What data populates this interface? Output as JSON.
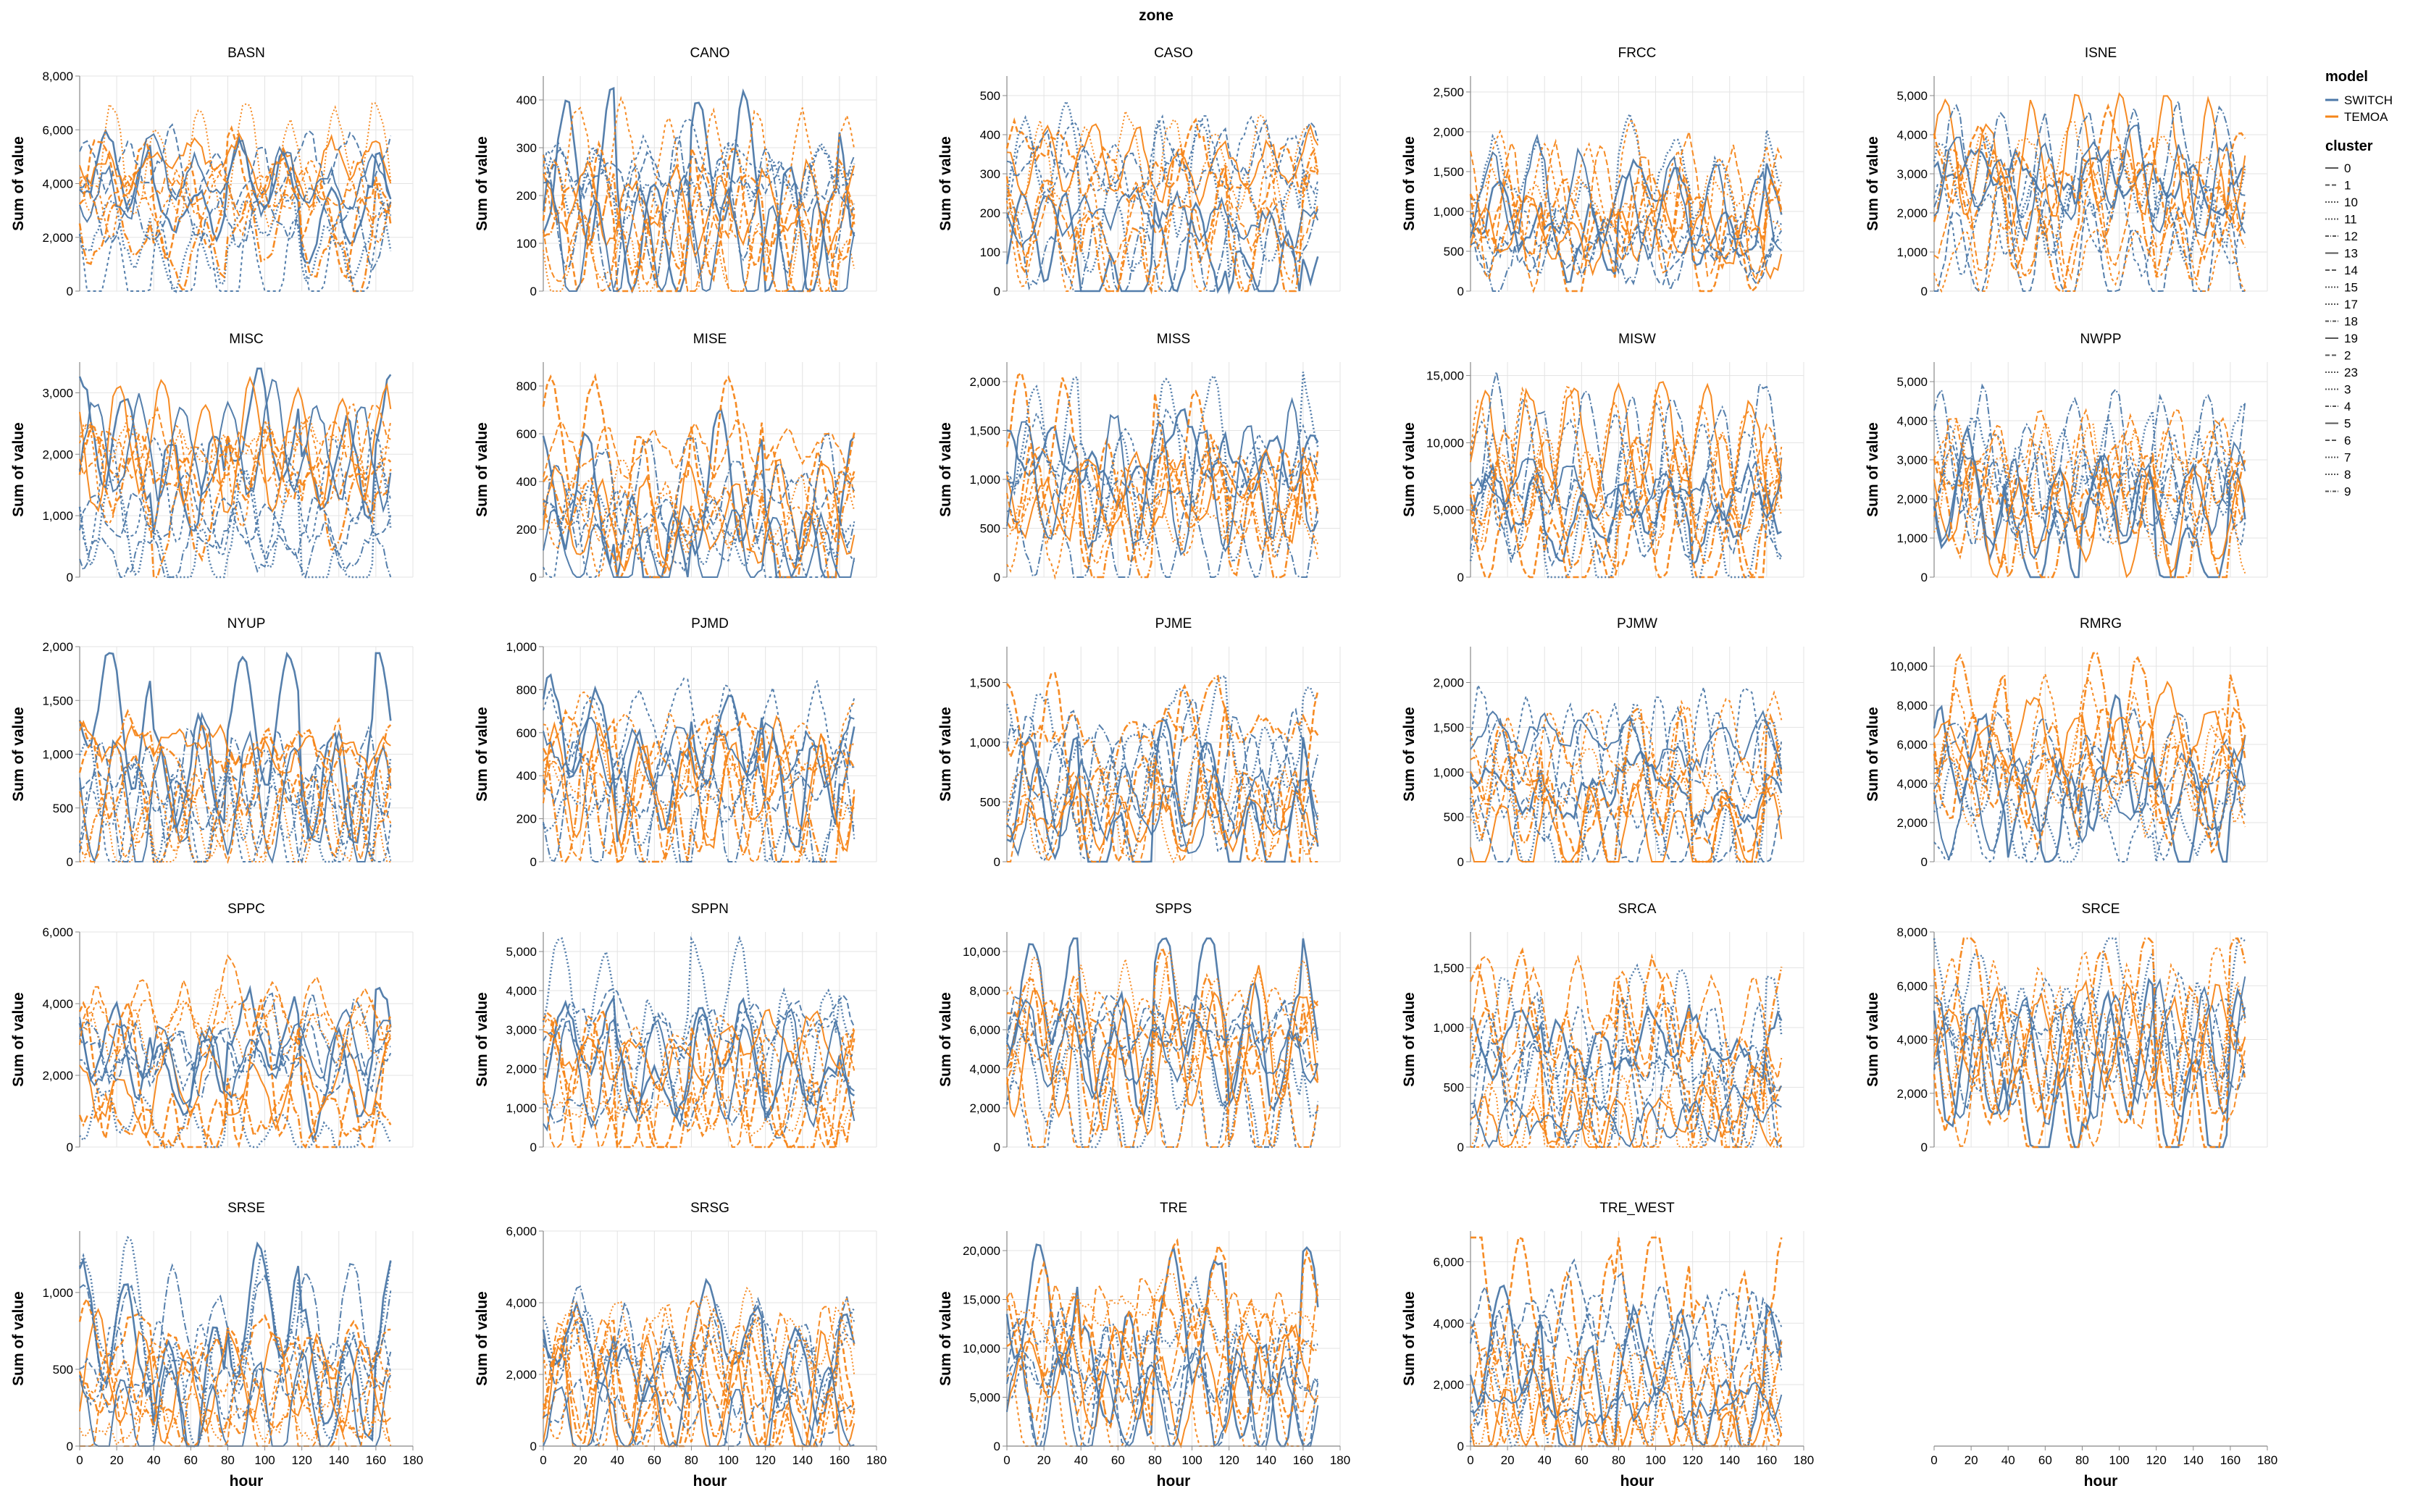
{
  "chart_data": {
    "type": "line",
    "column_header": "zone",
    "xlabel": "hour",
    "ylabel": "Sum of value",
    "x_ticks": [
      0,
      20,
      40,
      60,
      80,
      100,
      120,
      140,
      160,
      180
    ],
    "xlim": [
      0,
      180
    ],
    "grid": true,
    "legend_position": "right",
    "color_legend": {
      "title": "model",
      "entries": [
        {
          "label": "SWITCH",
          "color": "#4c78a8"
        },
        {
          "label": "TEMOA",
          "color": "#f58518"
        }
      ]
    },
    "dash_legend": {
      "title": "cluster",
      "entries": [
        "0",
        "1",
        "10",
        "11",
        "12",
        "13",
        "14",
        "15",
        "17",
        "18",
        "19",
        "2",
        "23",
        "3",
        "4",
        "5",
        "6",
        "7",
        "8",
        "9"
      ]
    },
    "facets": [
      {
        "zone": "BASN",
        "ylim": [
          0,
          8000
        ],
        "y_ticks": [
          "0",
          "2,000",
          "4,000",
          "6,000",
          "8,000"
        ]
      },
      {
        "zone": "CANO",
        "ylim": [
          0,
          450
        ],
        "y_ticks": [
          "0",
          "100",
          "200",
          "300",
          "400"
        ]
      },
      {
        "zone": "CASO",
        "ylim": [
          0,
          550
        ],
        "y_ticks": [
          "0",
          "100",
          "200",
          "300",
          "400",
          "500"
        ]
      },
      {
        "zone": "FRCC",
        "ylim": [
          0,
          2700
        ],
        "y_ticks": [
          "0",
          "500",
          "1,000",
          "1,500",
          "2,000",
          "2,500"
        ]
      },
      {
        "zone": "ISNE",
        "ylim": [
          0,
          5500
        ],
        "y_ticks": [
          "0",
          "1,000",
          "2,000",
          "3,000",
          "4,000",
          "5,000"
        ]
      },
      {
        "zone": "MISC",
        "ylim": [
          0,
          3500
        ],
        "y_ticks": [
          "0",
          "1,000",
          "2,000",
          "3,000"
        ]
      },
      {
        "zone": "MISE",
        "ylim": [
          0,
          900
        ],
        "y_ticks": [
          "0",
          "200",
          "400",
          "600",
          "800"
        ]
      },
      {
        "zone": "MISS",
        "ylim": [
          0,
          2200
        ],
        "y_ticks": [
          "0",
          "500",
          "1,000",
          "1,500",
          "2,000"
        ]
      },
      {
        "zone": "MISW",
        "ylim": [
          0,
          16000
        ],
        "y_ticks": [
          "0",
          "5,000",
          "10,000",
          "15,000"
        ]
      },
      {
        "zone": "NWPP",
        "ylim": [
          0,
          5500
        ],
        "y_ticks": [
          "0",
          "1,000",
          "2,000",
          "3,000",
          "4,000",
          "5,000"
        ]
      },
      {
        "zone": "NYUP",
        "ylim": [
          0,
          2000
        ],
        "y_ticks": [
          "0",
          "500",
          "1,000",
          "1,500",
          "2,000"
        ]
      },
      {
        "zone": "PJMD",
        "ylim": [
          0,
          1000
        ],
        "y_ticks": [
          "0",
          "200",
          "400",
          "600",
          "800",
          "1,000"
        ]
      },
      {
        "zone": "PJME",
        "ylim": [
          0,
          1800
        ],
        "y_ticks": [
          "0",
          "500",
          "1,000",
          "1,500"
        ]
      },
      {
        "zone": "PJMW",
        "ylim": [
          0,
          2400
        ],
        "y_ticks": [
          "0",
          "500",
          "1,000",
          "1,500",
          "2,000"
        ]
      },
      {
        "zone": "RMRG",
        "ylim": [
          0,
          11000
        ],
        "y_ticks": [
          "0",
          "2,000",
          "4,000",
          "6,000",
          "8,000",
          "10,000"
        ]
      },
      {
        "zone": "SPPC",
        "ylim": [
          0,
          6000
        ],
        "y_ticks": [
          "0",
          "2,000",
          "4,000",
          "6,000"
        ]
      },
      {
        "zone": "SPPN",
        "ylim": [
          0,
          5500
        ],
        "y_ticks": [
          "0",
          "1,000",
          "2,000",
          "3,000",
          "4,000",
          "5,000"
        ]
      },
      {
        "zone": "SPPS",
        "ylim": [
          0,
          11000
        ],
        "y_ticks": [
          "0",
          "2,000",
          "4,000",
          "6,000",
          "8,000",
          "10,000"
        ]
      },
      {
        "zone": "SRCA",
        "ylim": [
          0,
          1800
        ],
        "y_ticks": [
          "0",
          "500",
          "1,000",
          "1,500"
        ]
      },
      {
        "zone": "SRCE",
        "ylim": [
          0,
          8000
        ],
        "y_ticks": [
          "0",
          "2,000",
          "4,000",
          "6,000",
          "8,000"
        ]
      },
      {
        "zone": "SRSE",
        "ylim": [
          0,
          1400
        ],
        "y_ticks": [
          "0",
          "500",
          "1,000"
        ]
      },
      {
        "zone": "SRSG",
        "ylim": [
          0,
          6000
        ],
        "y_ticks": [
          "0",
          "2,000",
          "4,000",
          "6,000"
        ]
      },
      {
        "zone": "TRE",
        "ylim": [
          0,
          22000
        ],
        "y_ticks": [
          "0",
          "5,000",
          "10,000",
          "15,000",
          "20,000"
        ]
      },
      {
        "zone": "TRE_WEST",
        "ylim": [
          0,
          7000
        ],
        "y_ticks": [
          "0",
          "2,000",
          "4,000",
          "6,000"
        ]
      }
    ]
  }
}
